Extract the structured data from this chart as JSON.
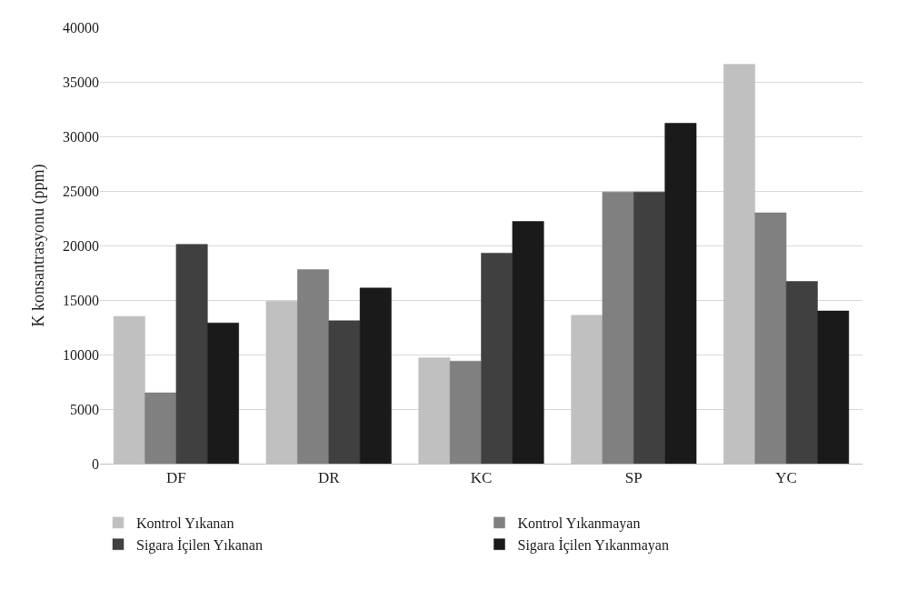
{
  "chart_data": {
    "type": "bar",
    "ylabel": "K konsantrasyonu (ppm)",
    "categories": [
      "DF",
      "DR",
      "KC",
      "SP",
      "YC"
    ],
    "series": [
      {
        "name": "Kontrol Yıkanan",
        "color": "#c0c0c0",
        "values": [
          13500,
          14900,
          9700,
          13600,
          36600
        ]
      },
      {
        "name": "Kontrol Yıkanmayan",
        "color": "#808080",
        "values": [
          6500,
          17800,
          9400,
          24900,
          23000
        ]
      },
      {
        "name": "Sigara İçilen Yıkanan",
        "color": "#404040",
        "values": [
          20100,
          13100,
          19300,
          24900,
          16700
        ]
      },
      {
        "name": "Sigara İçilen Yıkanmayan",
        "color": "#1a1a1a",
        "values": [
          12900,
          16100,
          22200,
          31200,
          14000
        ]
      }
    ],
    "ylim": [
      0,
      40000
    ],
    "yticks": [
      0,
      5000,
      10000,
      15000,
      20000,
      25000,
      30000,
      35000,
      40000
    ],
    "grid": "y",
    "legend": "bottom"
  }
}
